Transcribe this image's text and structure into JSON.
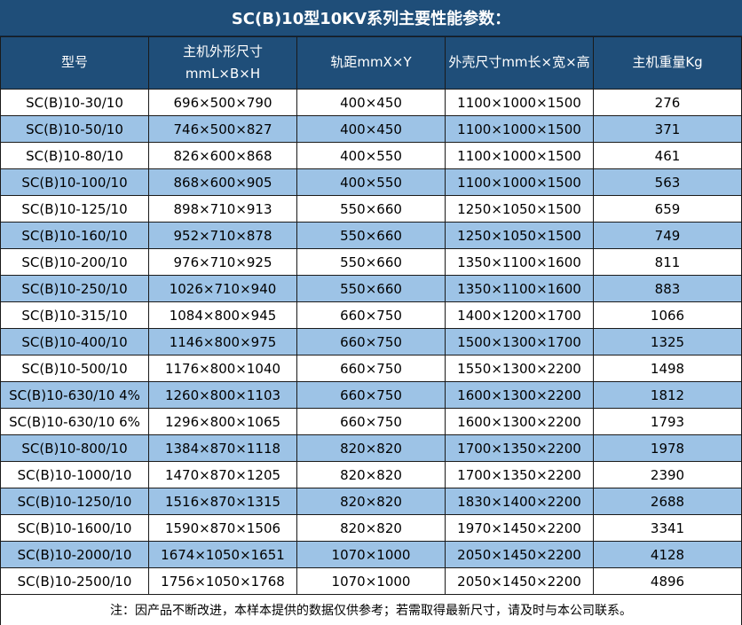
{
  "title": "SC(B)10型10KV系列主要性能参数：",
  "colors": {
    "header_bg": "#1F4E79",
    "row_bg": "#FFFFFF",
    "row_alt_bg": "#9DC3E6",
    "header_text": "#FFFFFF",
    "body_text": "#000000",
    "border": "#1A1A1A"
  },
  "table": {
    "headers": {
      "model": "型号",
      "main_dims_line1": "主机外形尺寸",
      "main_dims_line2": "mmL×B×H",
      "track_gauge": "轨距mmX×Y",
      "shell_dims": "外壳尺寸mm长×宽×高",
      "weight": "主机重量Kg"
    },
    "rows": [
      [
        "SC(B)10-30/10",
        "696×500×790",
        "400×450",
        "1100×1000×1500",
        "276"
      ],
      [
        "SC(B)10-50/10",
        "746×500×827",
        "400×450",
        "1100×1000×1500",
        "371"
      ],
      [
        "SC(B)10-80/10",
        "826×600×868",
        "400×550",
        "1100×1000×1500",
        "461"
      ],
      [
        "SC(B)10-100/10",
        "868×600×905",
        "400×550",
        "1100×1000×1500",
        "563"
      ],
      [
        "SC(B)10-125/10",
        "898×710×913",
        "550×660",
        "1250×1050×1500",
        "659"
      ],
      [
        "SC(B)10-160/10",
        "952×710×878",
        "550×660",
        "1250×1050×1500",
        "749"
      ],
      [
        "SC(B)10-200/10",
        "976×710×925",
        "550×660",
        "1350×1100×1600",
        "811"
      ],
      [
        "SC(B)10-250/10",
        "1026×710×940",
        "550×660",
        "1350×1100×1600",
        "883"
      ],
      [
        "SC(B)10-315/10",
        "1084×800×945",
        "660×750",
        "1400×1200×1700",
        "1066"
      ],
      [
        "SC(B)10-400/10",
        "1146×800×975",
        "660×750",
        "1500×1300×1700",
        "1325"
      ],
      [
        "SC(B)10-500/10",
        "1176×800×1040",
        "660×750",
        "1550×1300×2200",
        "1498"
      ],
      [
        "SC(B)10-630/10 4%",
        "1260×800×1103",
        "660×750",
        "1600×1300×2200",
        "1812"
      ],
      [
        "SC(B)10-630/10 6%",
        "1296×800×1065",
        "660×750",
        "1600×1300×2200",
        "1793"
      ],
      [
        "SC(B)10-800/10",
        "1384×870×1118",
        "820×820",
        "1700×1350×2200",
        "1978"
      ],
      [
        "SC(B)10-1000/10",
        "1470×870×1205",
        "820×820",
        "1700×1350×2200",
        "2390"
      ],
      [
        "SC(B)10-1250/10",
        "1516×870×1315",
        "820×820",
        "1830×1400×2200",
        "2688"
      ],
      [
        "SC(B)10-1600/10",
        "1590×870×1506",
        "820×820",
        "1970×1450×2200",
        "3341"
      ],
      [
        "SC(B)10-2000/10",
        "1674×1050×1651",
        "1070×1000",
        "2050×1450×2200",
        "4128"
      ],
      [
        "SC(B)10-2500/10",
        "1756×1050×1768",
        "1070×1000",
        "2050×1450×2200",
        "4896"
      ]
    ]
  },
  "footnote": "注：因产品不断改进，本样本提供的数据仅供参考；若需取得最新尺寸，请及时与本公司联系。"
}
